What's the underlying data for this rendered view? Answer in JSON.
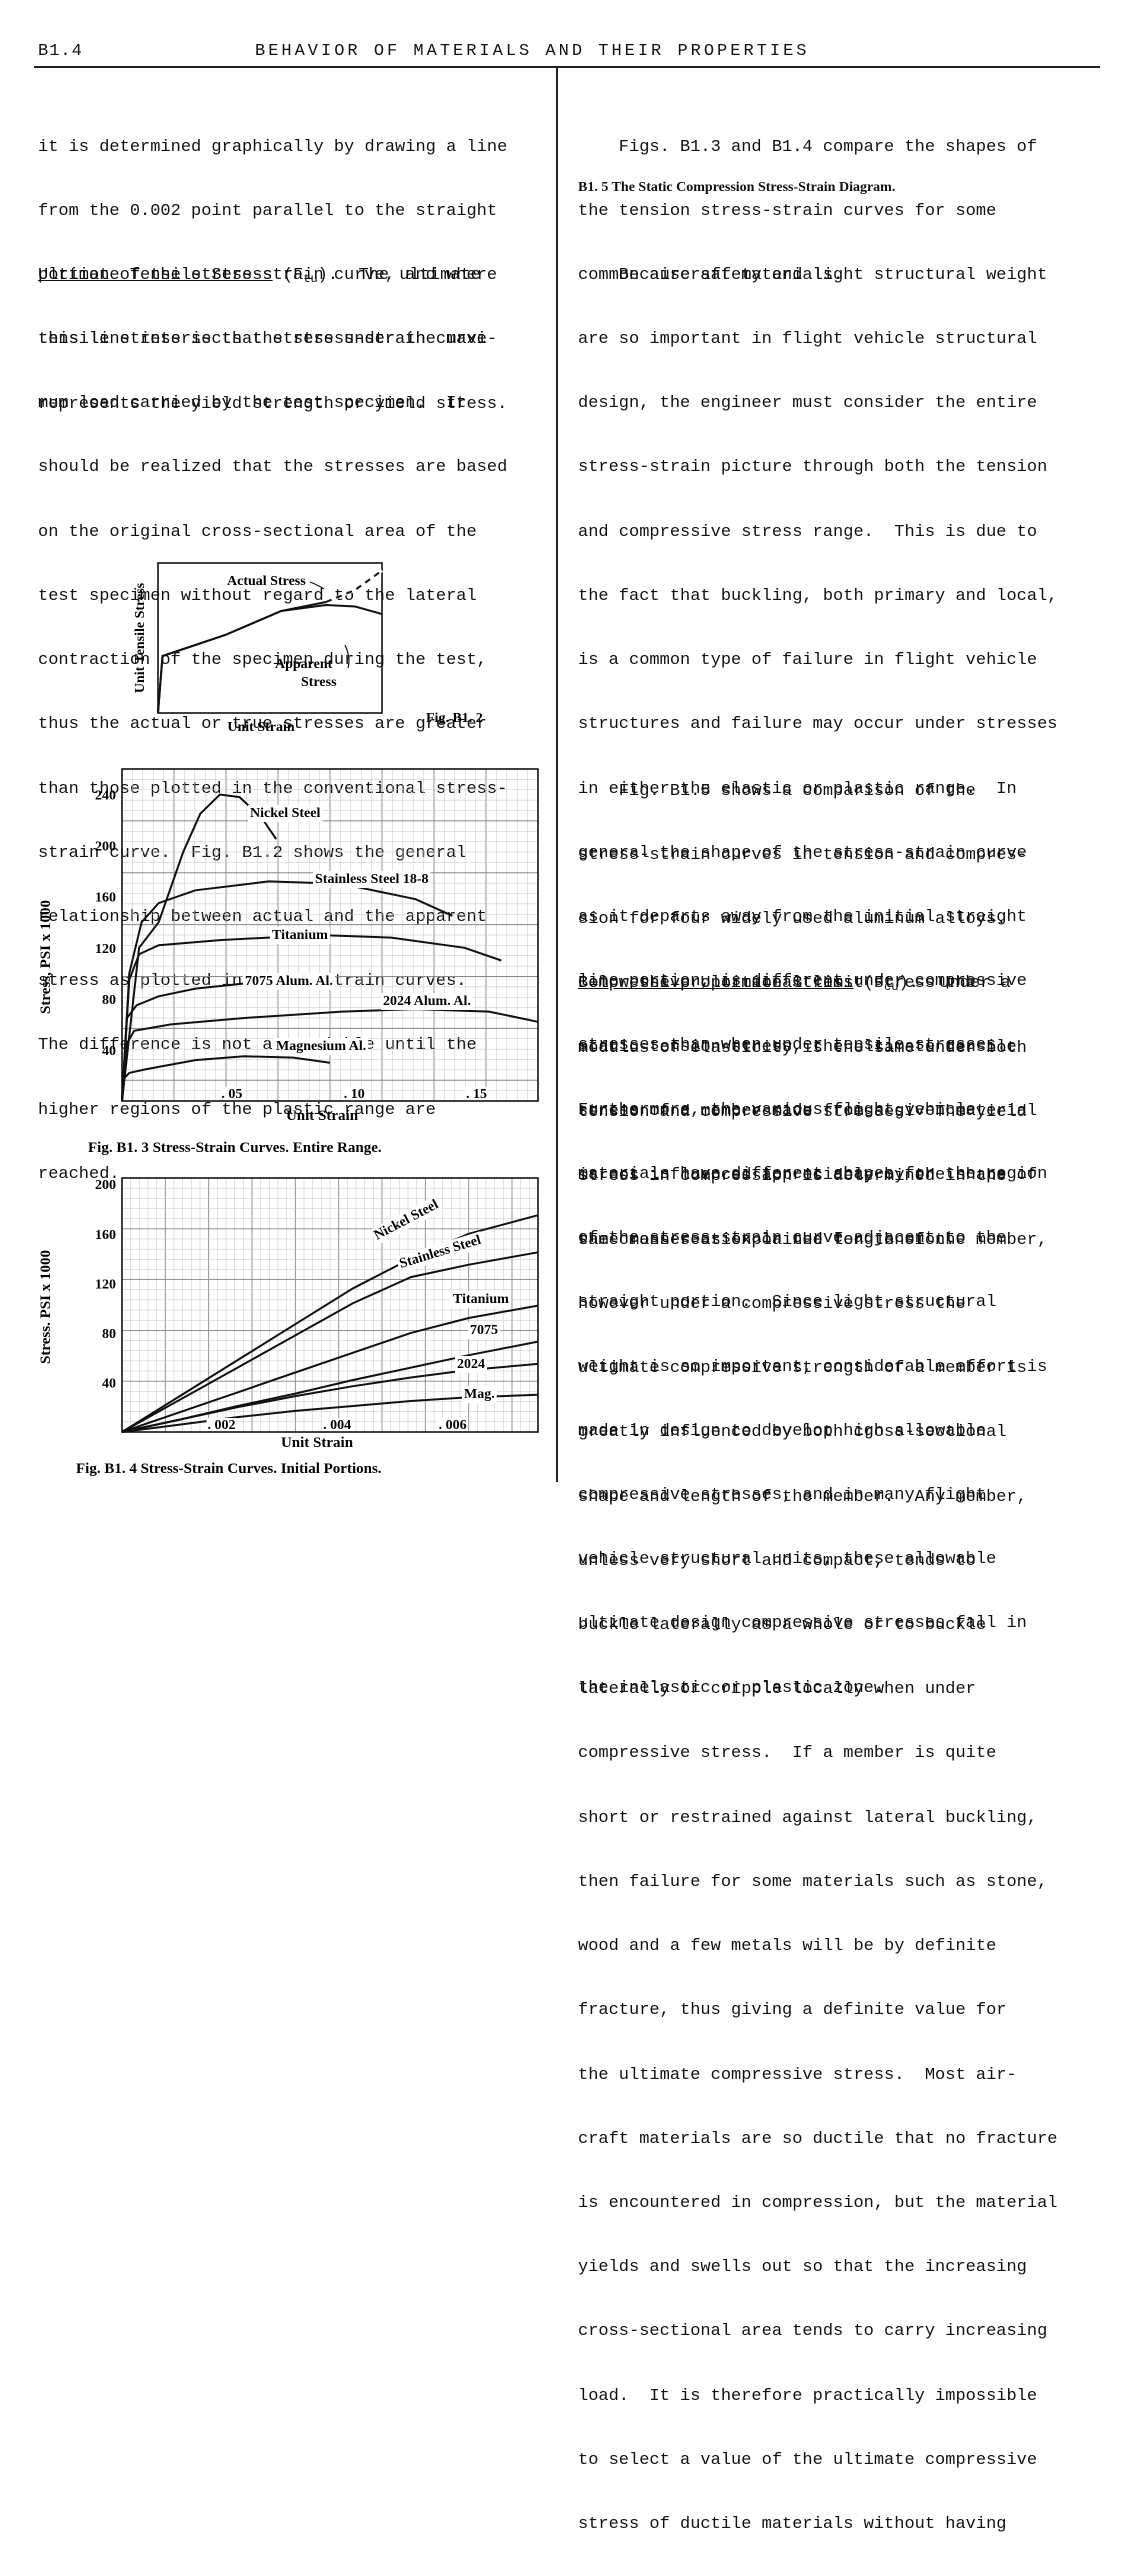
{
  "header": {
    "page_number": "B1.4",
    "title": "BEHAVIOR OF MATERIALS AND THEIR PROPERTIES"
  },
  "left_column": {
    "p1": [
      "it is determined graphically by drawing a line",
      "from the 0.002 point parallel to the straight",
      "portion of the stress-strain curve, and where",
      "this line intersects the stress-strain curve",
      "represents the yield strength or yield stress."
    ],
    "p2_term": "Ultimate Tensile Stress",
    "p2_symbol": "F",
    "p2_symbol_sub": "tu",
    "p2_first_line_rest": ".  The ultimate",
    "p2": [
      "tensile stress is that stress under the maxi-",
      "mum load carried by the test specimen.  It",
      "should be realized that the stresses are based",
      "on the original cross-sectional area of the",
      "test specimen without regard to the lateral",
      "contraction of the specimen during the test,",
      "thus the actual or true stresses are greater",
      "than those plotted in the conventional stress-",
      "strain curve.  Fig. B1.2 shows the general",
      "relationship between actual and the apparent",
      "stress as plotted in stress-strain curves.",
      "The difference is not appreciable until the",
      "higher regions of the plastic range are",
      "reached."
    ]
  },
  "right_column": {
    "p1": [
      "    Figs. B1.3 and B1.4 compare the shapes of",
      "the tension stress-strain curves for some",
      "common aircraft materials."
    ],
    "section_heading": "B1. 5  The Static Compression Stress-Strain Diagram.",
    "p2": [
      "    Because safety and light structural weight",
      "are so important in flight vehicle structural",
      "design, the engineer must consider the entire",
      "stress-strain picture through both the tension",
      "and compressive stress range.  This is due to",
      "the fact that buckling, both primary and local,",
      "is a common type of failure in flight vehicle",
      "structures and failure may occur under stresses",
      "in either the elastic or plastic range.  In",
      "general the shape of the stress-strain curve",
      "as it departs away from the initial straight",
      "line portion, is different under compressive",
      "stresses than when under tensile stresses.",
      "Furthermore, the various flight vehicle",
      "materials have different shapes for the region",
      "of the stress-strain curve adjacent to the",
      "straight portion.  Since light structural",
      "weight is so important, considerable effort is",
      "made in design to develop high allowable",
      "compressive stresses, and in many flight",
      "vehicle structural units, these allowable",
      "ultimate design compressive stresses fall in",
      "the inelastic or plastic zone."
    ],
    "p3": [
      "    Fig. B1.5 shows a comparison of the",
      "stress-strain curves in tension and compres-",
      "sion for four widely used aluminum alloys.",
      "Below the proportional limit stress the",
      "modulus of elasticity is the same under both",
      "tension and compressive stresses.  The yield",
      "stress in compression is determined in the",
      "same manner as explained for tension."
    ],
    "p4_term": "Compressive Ultimate Stress",
    "p4_symbol": "F",
    "p4_symbol_sub": "cu",
    "p4_first_line_rest": ".  Under a",
    "p4": [
      "static tension stress, the ultimate tensile",
      "stress of a member made from a given material",
      "is not influenced appreciably by the shape of",
      "the cross-section or the length of the member,",
      "however under a compressive stress the",
      "ultimate compressive strength of a member is",
      "greatly influenced by both cross-sectional",
      "shape and length of the member.  Any member,",
      "unless very short and compact, tends to",
      "buckle laterally as a whole or to buckle",
      "laterally or cripple locally when under",
      "compressive stress.  If a member is quite",
      "short or restrained against lateral buckling,",
      "then failure for some materials such as stone,",
      "wood and a few metals will be by definite",
      "fracture, thus giving a definite value for",
      "the ultimate compressive stress.  Most air-",
      "craft materials are so ductile that no fracture",
      "is encountered in compression, but the material",
      "yields and swells out so that the increasing",
      "cross-sectional area tends to carry increasing",
      "load.  It is therefore practically impossible",
      "to select a value of the ultimate compressive",
      "stress of ductile materials without having"
    ]
  },
  "chart_data": [
    {
      "type": "line",
      "figure_label": "Fig. B1. 2",
      "xlabel": "Unit Strain",
      "ylabel": "Unit Tensile Stress",
      "annotations": [
        "Actual Stress",
        "Apparent",
        "Stress"
      ],
      "grid": false,
      "series": [
        {
          "name": "Actual Stress",
          "x": [
            0,
            0.02,
            0.3,
            0.55,
            0.75,
            0.88,
            1.0
          ],
          "y": [
            0,
            0.38,
            0.52,
            0.68,
            0.74,
            0.82,
            0.95
          ]
        },
        {
          "name": "Apparent Stress",
          "x": [
            0,
            0.02,
            0.3,
            0.55,
            0.75,
            0.88,
            1.0
          ],
          "y": [
            0,
            0.38,
            0.52,
            0.68,
            0.72,
            0.71,
            0.66
          ]
        }
      ]
    },
    {
      "type": "line",
      "caption": "Fig. B1. 3  Stress-Strain Curves.  Entire Range.",
      "xlabel": "Unit Strain",
      "ylabel": "Stress,  PSI x 1000",
      "x_ticks": [
        0.05,
        0.1,
        0.15
      ],
      "x_tick_labels": [
        ". 05",
        ". 10",
        ". 15"
      ],
      "y_ticks": [
        40,
        80,
        120,
        160,
        200,
        240
      ],
      "xlim": [
        0,
        0.17
      ],
      "ylim": [
        0,
        260
      ],
      "grid": true,
      "series": [
        {
          "name": "Nickel Steel",
          "x": [
            0,
            0.007,
            0.015,
            0.025,
            0.032,
            0.04,
            0.048,
            0.057,
            0.063
          ],
          "y": [
            0,
            120,
            140,
            195,
            225,
            240,
            238,
            222,
            205
          ]
        },
        {
          "name": "Stainless Steel 18-8",
          "x": [
            0,
            0.003,
            0.008,
            0.015,
            0.03,
            0.06,
            0.09,
            0.12,
            0.135
          ],
          "y": [
            0,
            100,
            140,
            155,
            165,
            172,
            170,
            158,
            145
          ]
        },
        {
          "name": "Titanium",
          "x": [
            0,
            0.003,
            0.007,
            0.015,
            0.04,
            0.08,
            0.11,
            0.14,
            0.155
          ],
          "y": [
            0,
            95,
            115,
            122,
            126,
            130,
            128,
            120,
            110
          ]
        },
        {
          "name": "7075 Alum. Al.",
          "x": [
            0,
            0.002,
            0.006,
            0.015,
            0.03,
            0.05,
            0.075,
            0.085
          ],
          "y": [
            0,
            65,
            75,
            82,
            88,
            92,
            91,
            88
          ]
        },
        {
          "name": "2024 Alum. Al.",
          "x": [
            0,
            0.002,
            0.005,
            0.02,
            0.05,
            0.09,
            0.12,
            0.15,
            0.17
          ],
          "y": [
            0,
            45,
            55,
            60,
            65,
            70,
            72,
            70,
            62
          ]
        },
        {
          "name": "Magnesium Al.",
          "x": [
            0,
            0.001,
            0.003,
            0.01,
            0.03,
            0.05,
            0.07,
            0.085
          ],
          "y": [
            0,
            18,
            22,
            25,
            32,
            35,
            34,
            30
          ]
        }
      ]
    },
    {
      "type": "line",
      "caption": "Fig. B1. 4  Stress-Strain Curves.  Initial Portions.",
      "xlabel": "Unit Strain",
      "ylabel": "Stress.  PSI x 1000",
      "x_ticks": [
        0.002,
        0.004,
        0.006
      ],
      "x_tick_labels": [
        ". 002",
        ". 004",
        ". 006"
      ],
      "y_ticks": [
        40,
        80,
        120,
        160,
        200
      ],
      "xlim": [
        0,
        0.0072
      ],
      "ylim": [
        0,
        205
      ],
      "grid": true,
      "series": [
        {
          "name": "Nickel Steel",
          "x": [
            0,
            0.001,
            0.002,
            0.003,
            0.004,
            0.005,
            0.006,
            0.0072
          ],
          "y": [
            0,
            29,
            58,
            87,
            116,
            140,
            160,
            175
          ]
        },
        {
          "name": "Stainless Steel",
          "x": [
            0,
            0.001,
            0.002,
            0.003,
            0.004,
            0.005,
            0.006,
            0.0072
          ],
          "y": [
            0,
            26,
            52,
            78,
            104,
            125,
            135,
            145
          ]
        },
        {
          "name": "Titanium",
          "x": [
            0,
            0.001,
            0.002,
            0.003,
            0.004,
            0.005,
            0.006,
            0.0072
          ],
          "y": [
            0,
            16,
            32,
            48,
            64,
            80,
            92,
            102
          ]
        },
        {
          "name": "7075",
          "x": [
            0,
            0.001,
            0.002,
            0.003,
            0.004,
            0.005,
            0.006,
            0.0072
          ],
          "y": [
            0,
            10,
            21,
            31,
            42,
            52,
            62,
            73
          ]
        },
        {
          "name": "2024",
          "x": [
            0,
            0.001,
            0.002,
            0.003,
            0.004,
            0.005,
            0.006,
            0.0072
          ],
          "y": [
            0,
            10,
            20,
            29,
            37,
            44,
            50,
            55
          ]
        },
        {
          "name": "Mag.",
          "x": [
            0,
            0.001,
            0.002,
            0.003,
            0.004,
            0.005,
            0.006,
            0.0072
          ],
          "y": [
            0,
            6,
            12,
            17,
            21,
            25,
            28,
            30
          ]
        }
      ]
    }
  ]
}
